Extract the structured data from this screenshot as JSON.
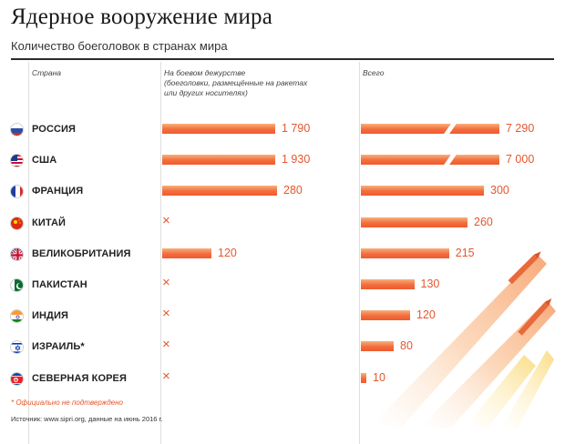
{
  "header": {
    "title": "Ядерное вооружение мира",
    "subtitle": "Количество боеголовок в странах мира"
  },
  "columns": {
    "country": "Страна",
    "deployed_lines": [
      "На боевом дежурстве",
      "(боеголовки, размещённые на ракетах",
      "или других носителях)"
    ],
    "total": "Всего"
  },
  "colors": {
    "accent": "#e4572e",
    "bar_light": "#f9b07a",
    "bar_dark": "#ef5a2e"
  },
  "chart_data": {
    "type": "bar",
    "title": "Ядерное вооружение мира",
    "subtitle": "Количество боеголовок в странах мира",
    "categories": [
      "РОССИЯ",
      "США",
      "ФРАНЦИЯ",
      "КИТАЙ",
      "ВЕЛИКОБРИТАНИЯ",
      "ПАКИСТАН",
      "ИНДИЯ",
      "ИЗРАИЛЬ*",
      "СЕВЕРНАЯ КОРЕЯ"
    ],
    "flags": [
      "russia-flag-icon",
      "usa-flag-icon",
      "france-flag-icon",
      "china-flag-icon",
      "uk-flag-icon",
      "pakistan-flag-icon",
      "india-flag-icon",
      "israel-flag-icon",
      "north-korea-flag-icon"
    ],
    "series": [
      {
        "name": "На боевом дежурстве",
        "values": [
          1790,
          1930,
          280,
          null,
          120,
          null,
          null,
          null,
          null
        ],
        "labels": [
          "1 790",
          "1 930",
          "280",
          "×",
          "120",
          "×",
          "×",
          "×",
          "×"
        ]
      },
      {
        "name": "Всего",
        "values": [
          7290,
          7000,
          300,
          260,
          215,
          130,
          120,
          80,
          10
        ],
        "labels": [
          "7 290",
          "7 000",
          "300",
          "260",
          "215",
          "130",
          "120",
          "80",
          "10"
        ]
      }
    ],
    "axis_breaks": [
      "РОССИЯ",
      "США"
    ]
  },
  "footnote": "* Официально не подтверждено",
  "source": "Источник: www.sipri.org, данные на июнь 2016 г."
}
